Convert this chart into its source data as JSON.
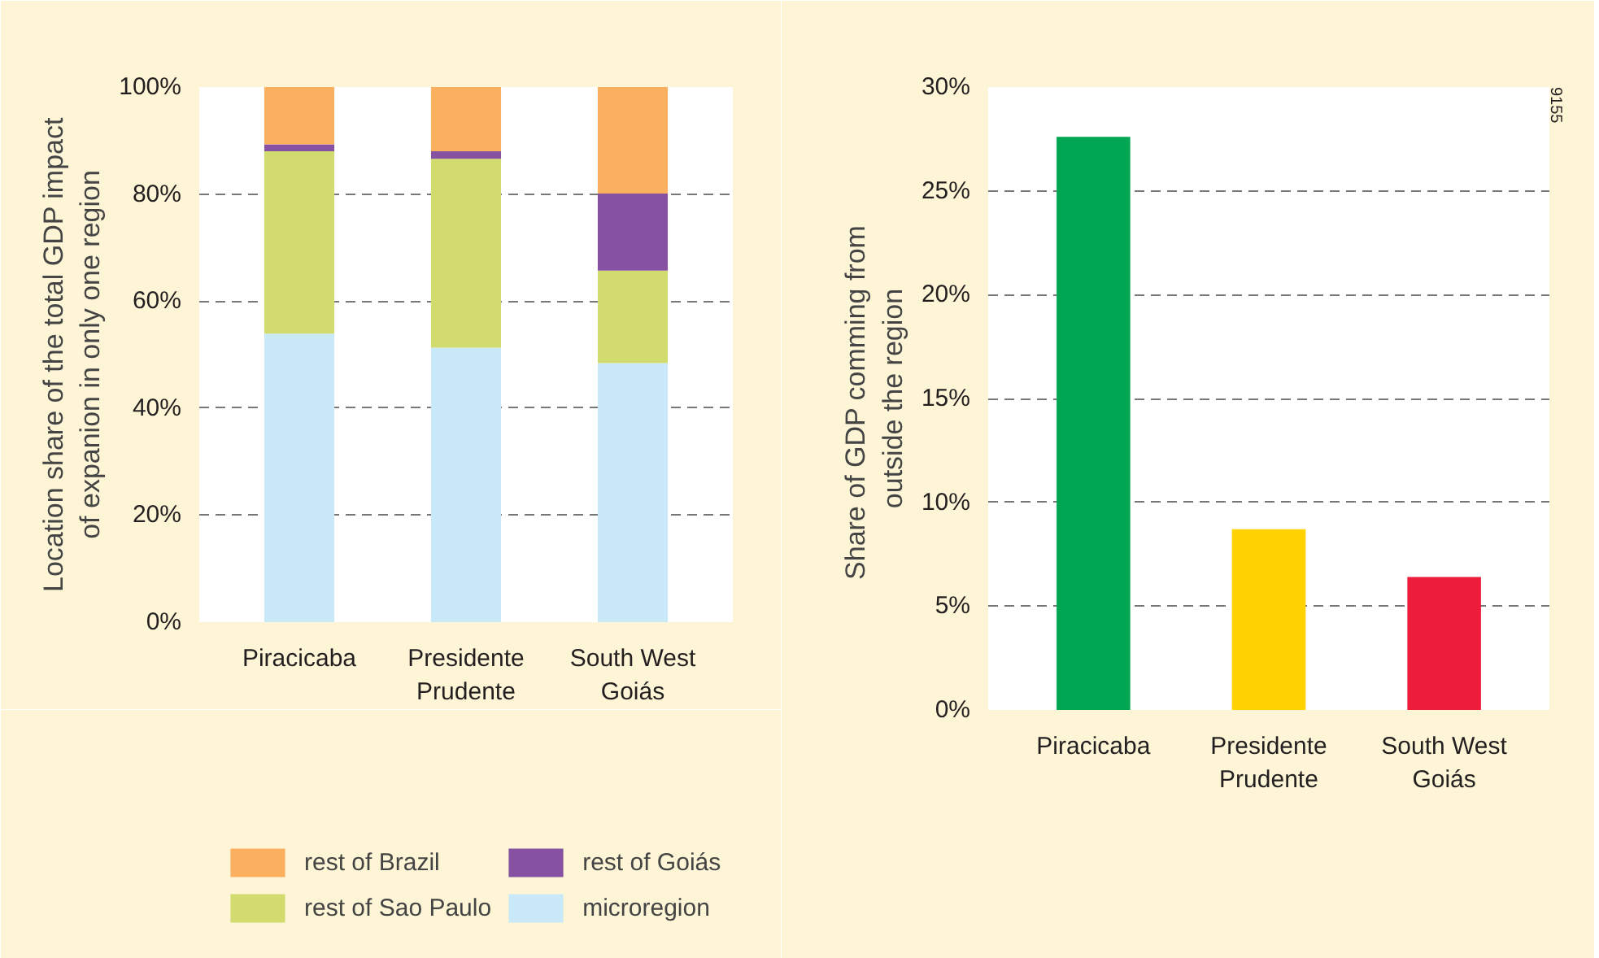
{
  "chart_data": [
    {
      "type": "bar",
      "stacked": true,
      "ylabel": "Location share of the total GDP impact\nof expanion in only one region",
      "categories": [
        "Piracicaba",
        "Presidente\nPrudente",
        "South West\nGoiás"
      ],
      "series": [
        {
          "name": "microregion",
          "color": "#c9e9f9",
          "values": [
            53.9,
            51.3,
            48.4
          ]
        },
        {
          "name": "rest of Sao Paulo",
          "color": "#d2dc6e",
          "values": [
            34.1,
            35.3,
            17.3
          ]
        },
        {
          "name": "rest of Goiás",
          "color": "#8651a1",
          "values": [
            1.3,
            1.4,
            14.4
          ]
        },
        {
          "name": "rest of Brazil",
          "color": "#fbb05f",
          "values": [
            10.7,
            12.0,
            19.9
          ]
        }
      ],
      "ylim": [
        0,
        100
      ],
      "yticks": [
        {
          "value": 0,
          "label": "0%"
        },
        {
          "value": 20,
          "label": "20%"
        },
        {
          "value": 40,
          "label": "40%"
        },
        {
          "value": 60,
          "label": "60%"
        },
        {
          "value": 80,
          "label": "80%"
        },
        {
          "value": 100,
          "label": "100%"
        }
      ],
      "grid": "y",
      "legend": "bottom"
    },
    {
      "type": "bar",
      "ylabel": "Share of GDP comming  from\noutside the region",
      "categories": [
        "Piracicaba",
        "Presidente\nPrudente",
        "South West\nGoiás"
      ],
      "values": [
        27.6,
        8.7,
        6.4
      ],
      "colors": [
        "#00a651",
        "#ffd200",
        "#ed1c3a"
      ],
      "ylim": [
        0,
        30
      ],
      "yticks": [
        {
          "value": 0,
          "label": "0%"
        },
        {
          "value": 5,
          "label": "5%"
        },
        {
          "value": 10,
          "label": "10%"
        },
        {
          "value": 15,
          "label": "15%"
        },
        {
          "value": 20,
          "label": "20%"
        },
        {
          "value": 25,
          "label": "25%"
        },
        {
          "value": 30,
          "label": "30%"
        }
      ],
      "grid": "y",
      "annotations": [
        "9155"
      ]
    }
  ]
}
